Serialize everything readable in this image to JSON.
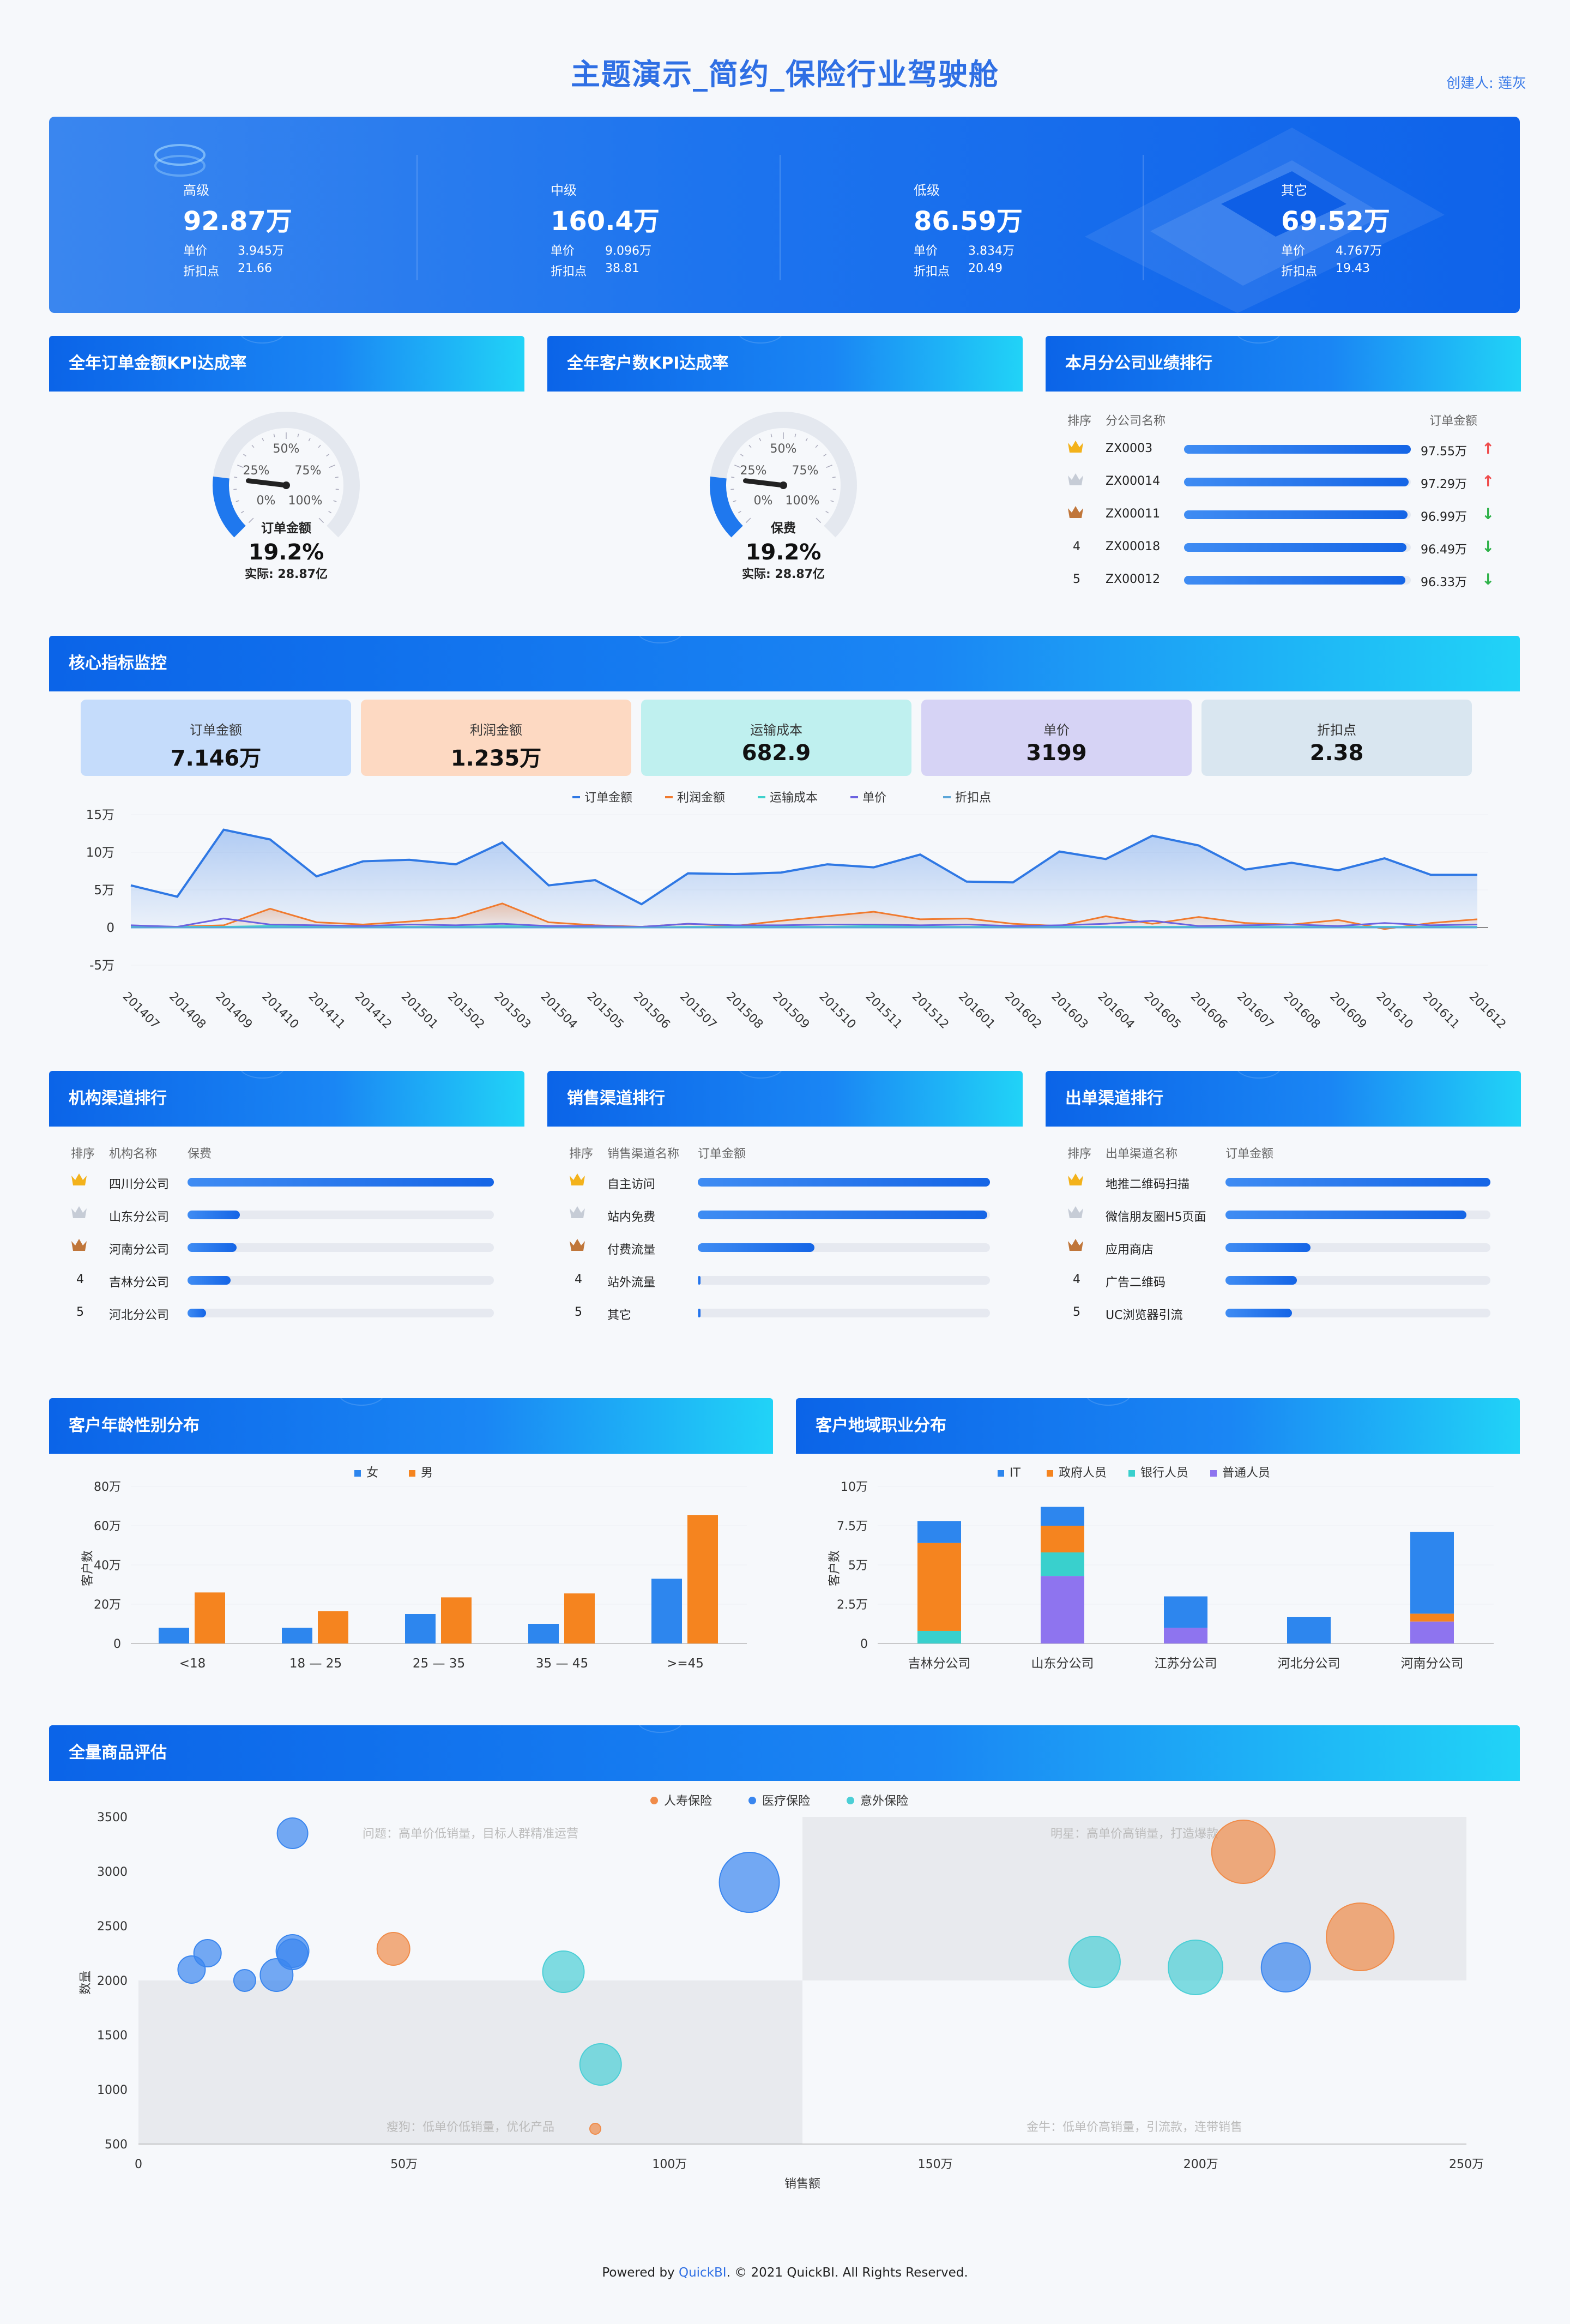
{
  "title": "主题演示_简约_保险行业驾驶舱",
  "creator": "创建人: 莲灰",
  "banner": [
    {
      "label": "高级",
      "value": "92.87万",
      "price_label": "单价",
      "price": "3.945万",
      "disc_label": "折扣点",
      "disc": "21.66"
    },
    {
      "label": "中级",
      "value": "160.4万",
      "price_label": "单价",
      "price": "9.096万",
      "disc_label": "折扣点",
      "disc": "38.81"
    },
    {
      "label": "低级",
      "value": "86.59万",
      "price_label": "单价",
      "price": "3.834万",
      "disc_label": "折扣点",
      "disc": "20.49"
    },
    {
      "label": "其它",
      "value": "69.52万",
      "price_label": "单价",
      "price": "4.767万",
      "disc_label": "折扣点",
      "disc": "19.43"
    }
  ],
  "gauge1": {
    "title": "全年订单金额KPI达成率",
    "name": "订单金额",
    "pct": "19.2%",
    "actual": "实际: 28.87亿",
    "value": 0.192,
    "ticks": [
      "0%",
      "25%",
      "50%",
      "75%",
      "100%"
    ]
  },
  "gauge2": {
    "title": "全年客户数KPI达成率",
    "name": "保费",
    "pct": "19.2%",
    "actual": "实际: 28.87亿",
    "value": 0.192,
    "ticks": [
      "0%",
      "25%",
      "50%",
      "75%",
      "100%"
    ]
  },
  "branch": {
    "title": "本月分公司业绩排行",
    "h_rank": "排序",
    "h_name": "分公司名称",
    "h_val": "订单金额",
    "rows": [
      {
        "rank": "1",
        "name": "ZX0003",
        "val": "97.55万",
        "trend": "up",
        "level": 1.0
      },
      {
        "rank": "2",
        "name": "ZX00014",
        "val": "97.29万",
        "trend": "up",
        "level": 0.99
      },
      {
        "rank": "3",
        "name": "ZX00011",
        "val": "96.99万",
        "trend": "down",
        "level": 0.985
      },
      {
        "rank": "4",
        "name": "ZX00018",
        "val": "96.49万",
        "trend": "down",
        "level": 0.98
      },
      {
        "rank": "5",
        "name": "ZX00012",
        "val": "96.33万",
        "trend": "down",
        "level": 0.975
      }
    ]
  },
  "core": {
    "title": "核心指标监控",
    "kpis": [
      {
        "label": "订单金额",
        "value": "7.146万",
        "bg": "#c5dcfb"
      },
      {
        "label": "利润金额",
        "value": "1.235万",
        "bg": "#fdd9c2"
      },
      {
        "label": "运输成本",
        "value": "682.9",
        "bg": "#bff0ef"
      },
      {
        "label": "单价",
        "value": "3199",
        "bg": "#d6d3f5"
      },
      {
        "label": "折扣点",
        "value": "2.38",
        "bg": "#d9e6f0"
      }
    ]
  },
  "chart_data": [
    {
      "type": "area",
      "legend": [
        "订单金额",
        "利润金额",
        "运输成本",
        "单价",
        "折扣点"
      ],
      "colors": [
        "#2f78e4",
        "#f07a2e",
        "#3ed1cc",
        "#6b62e0",
        "#5ba6d8"
      ],
      "y_ticks": [
        "15万",
        "10万",
        "5万",
        "0",
        "-5万"
      ],
      "ylim": [
        -50000,
        150000
      ],
      "x": [
        "201407",
        "201408",
        "201409",
        "201410",
        "201411",
        "201412",
        "201501",
        "201502",
        "201503",
        "201504",
        "201505",
        "201506",
        "201507",
        "201508",
        "201509",
        "201510",
        "201511",
        "201512",
        "201601",
        "201602",
        "201603",
        "201604",
        "201605",
        "201606",
        "201607",
        "201608",
        "201609",
        "201610",
        "201611",
        "201612"
      ],
      "series": [
        {
          "name": "订单金额",
          "values": [
            56000,
            41000,
            130000,
            117000,
            68000,
            88000,
            90000,
            84000,
            113000,
            56000,
            63000,
            31000,
            72000,
            71000,
            73000,
            84000,
            80000,
            97000,
            61000,
            60000,
            101000,
            91000,
            122000,
            109000,
            77000,
            86000,
            76000,
            92000,
            70000,
            70000
          ]
        },
        {
          "name": "利润金额",
          "values": [
            2000,
            1000,
            3000,
            25000,
            7000,
            4000,
            8000,
            13000,
            32000,
            7000,
            3000,
            1000,
            5000,
            2000,
            9000,
            15000,
            21000,
            11000,
            12000,
            5000,
            2000,
            15000,
            5000,
            14000,
            6000,
            4000,
            10000,
            -2000,
            6000,
            11000
          ]
        },
        {
          "name": "运输成本",
          "values": [
            1000,
            1000,
            1000,
            2000,
            1000,
            1000,
            1000,
            1000,
            2000,
            1000,
            1000,
            0,
            1000,
            1000,
            1000,
            1000,
            2000,
            1000,
            1000,
            1000,
            1000,
            1000,
            1000,
            1000,
            1000,
            1000,
            1000,
            1000,
            1000,
            1000
          ]
        },
        {
          "name": "单价",
          "values": [
            3000,
            1000,
            12000,
            4000,
            3000,
            2000,
            4000,
            3000,
            5000,
            2000,
            2000,
            1000,
            5000,
            3000,
            3000,
            4000,
            4000,
            3000,
            4000,
            2000,
            3000,
            5000,
            9000,
            2000,
            3000,
            4000,
            2000,
            6000,
            3000,
            4000
          ]
        },
        {
          "name": "折扣点",
          "values": [
            0,
            0,
            0,
            0,
            0,
            0,
            0,
            0,
            0,
            0,
            0,
            0,
            0,
            0,
            0,
            0,
            0,
            0,
            0,
            0,
            0,
            0,
            0,
            0,
            0,
            0,
            0,
            0,
            0,
            0
          ]
        }
      ]
    },
    {
      "type": "bar",
      "title": "客户年龄性别分布",
      "ylabel": "客户数",
      "categories": [
        "<18",
        "18 — 25",
        "25 — 35",
        "35 — 45",
        ">=45"
      ],
      "y_ticks": [
        "80万",
        "60万",
        "40万",
        "20万",
        "0"
      ],
      "ylim": [
        0,
        800000
      ],
      "series": [
        {
          "name": "女",
          "values": [
            80000,
            80000,
            150000,
            100000,
            330000
          ]
        },
        {
          "name": "男",
          "values": [
            260000,
            165000,
            235000,
            255000,
            655000
          ]
        }
      ]
    },
    {
      "type": "bar",
      "title": "客户地域职业分布",
      "ylabel": "客户数",
      "categories": [
        "吉林分公司",
        "山东分公司",
        "江苏分公司",
        "河北分公司",
        "河南分公司"
      ],
      "y_ticks": [
        "10万",
        "7.5万",
        "5万",
        "2.5万",
        "0"
      ],
      "ylim": [
        0,
        100000
      ],
      "stacked": true,
      "series": [
        {
          "name": "普通人员",
          "values": [
            0,
            43000,
            10000,
            0,
            14000
          ]
        },
        {
          "name": "银行人员",
          "values": [
            8000,
            15000,
            0,
            0,
            0
          ]
        },
        {
          "name": "政府人员",
          "values": [
            56000,
            17000,
            0,
            0,
            5000
          ]
        },
        {
          "name": "IT",
          "values": [
            14000,
            12000,
            20000,
            17000,
            52000
          ]
        }
      ]
    },
    {
      "type": "scatter",
      "title": "全量商品评估",
      "xlabel": "销售额",
      "ylabel": "数量",
      "x_ticks": [
        "0",
        "50万",
        "100万",
        "150万",
        "200万",
        "250万"
      ],
      "y_ticks": [
        "3500",
        "3000",
        "2500",
        "2000",
        "1500",
        "1000",
        "500"
      ],
      "xlim": [
        0,
        2500000
      ],
      "ylim": [
        500,
        3500
      ],
      "quadrants": [
        "问题：高单价低销量，目标人群精准运营",
        "明星：高单价高销量，打造爆款",
        "瘦狗：低单价低销量，优化产品",
        "金牛：低单价高销量，引流款，连带销售"
      ],
      "series": [
        {
          "name": "人寿保险",
          "color": "#f08c4a",
          "points": [
            [
              480000,
              2290,
              30
            ],
            [
              860000,
              640,
              10
            ],
            [
              2080000,
              3180,
              58
            ],
            [
              2300000,
              2400,
              62
            ]
          ]
        },
        {
          "name": "医疗保险",
          "color": "#3a86ef",
          "points": [
            [
              100000,
              2100,
              25
            ],
            [
              130000,
              2250,
              25
            ],
            [
              200000,
              2000,
              20
            ],
            [
              260000,
              2050,
              30
            ],
            [
              290000,
              3350,
              28
            ],
            [
              290000,
              2270,
              30
            ],
            [
              290000,
              2240,
              28
            ],
            [
              1150000,
              2900,
              55
            ],
            [
              2160000,
              2120,
              45
            ]
          ]
        },
        {
          "name": "意外保险",
          "color": "#4ccfd6",
          "points": [
            [
              800000,
              2080,
              38
            ],
            [
              870000,
              1230,
              38
            ],
            [
              1800000,
              2170,
              47
            ],
            [
              1990000,
              2120,
              50
            ]
          ]
        }
      ]
    }
  ],
  "channel1": {
    "title": "机构渠道排行",
    "h_rank": "排序",
    "h_name": "机构名称",
    "h_val": "保费",
    "rows": [
      {
        "rank": "1",
        "name": "四川分公司",
        "level": 1.0
      },
      {
        "rank": "2",
        "name": "山东分公司",
        "level": 0.17
      },
      {
        "rank": "3",
        "name": "河南分公司",
        "level": 0.16
      },
      {
        "rank": "4",
        "name": "吉林分公司",
        "level": 0.14
      },
      {
        "rank": "5",
        "name": "河北分公司",
        "level": 0.06
      }
    ]
  },
  "channel2": {
    "title": "销售渠道排行",
    "h_rank": "排序",
    "h_name": "销售渠道名称",
    "h_val": "订单金额",
    "rows": [
      {
        "rank": "1",
        "name": "自主访问",
        "level": 1.0
      },
      {
        "rank": "2",
        "name": "站内免费",
        "level": 0.99
      },
      {
        "rank": "3",
        "name": "付费流量",
        "level": 0.4
      },
      {
        "rank": "4",
        "name": "站外流量",
        "level": 0.01
      },
      {
        "rank": "5",
        "name": "其它",
        "level": 0.01
      }
    ]
  },
  "channel3": {
    "title": "出单渠道排行",
    "h_rank": "排序",
    "h_name": "出单渠道名称",
    "h_val": "订单金额",
    "rows": [
      {
        "rank": "1",
        "name": "地推二维码扫描",
        "level": 1.0
      },
      {
        "rank": "2",
        "name": "微信朋友圈H5页面",
        "level": 0.91
      },
      {
        "rank": "3",
        "name": "应用商店",
        "level": 0.32
      },
      {
        "rank": "4",
        "name": "广告二维码",
        "level": 0.27
      },
      {
        "rank": "5",
        "name": "UC浏览器引流",
        "level": 0.25
      }
    ]
  },
  "age_title": "客户年龄性别分布",
  "region_title": "客户地域职业分布",
  "eval_title": "全量商品评估",
  "footer": {
    "prefix": "Powered by ",
    "brand": "QuickBI",
    "suffix": ". © 2021 QuickBI. All Rights Reserved."
  }
}
